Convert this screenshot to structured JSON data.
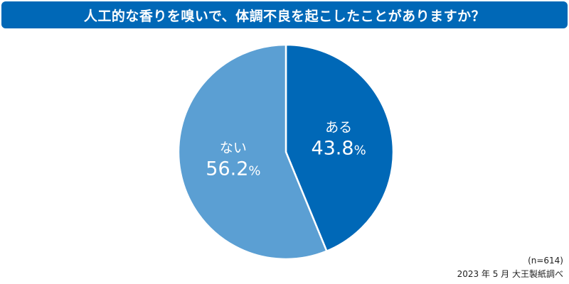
{
  "header": {
    "title": "人工的な香りを嗅いで、体調不良を起こしたことがありますか？"
  },
  "chart_data": {
    "type": "pie",
    "categories": [
      "ある",
      "ない"
    ],
    "values": [
      43.8,
      56.2
    ],
    "value_suffix": "%",
    "colors": [
      "#0068b7",
      "#5b9fd3"
    ],
    "start_angle_deg": 0,
    "direction": "clockwise",
    "title": "人工的な香りを嗅いで、体調不良を起こしたことがありますか？"
  },
  "footnote": {
    "sample": "(n=614)",
    "source": "2023 年 5 月 大王製紙調べ"
  }
}
